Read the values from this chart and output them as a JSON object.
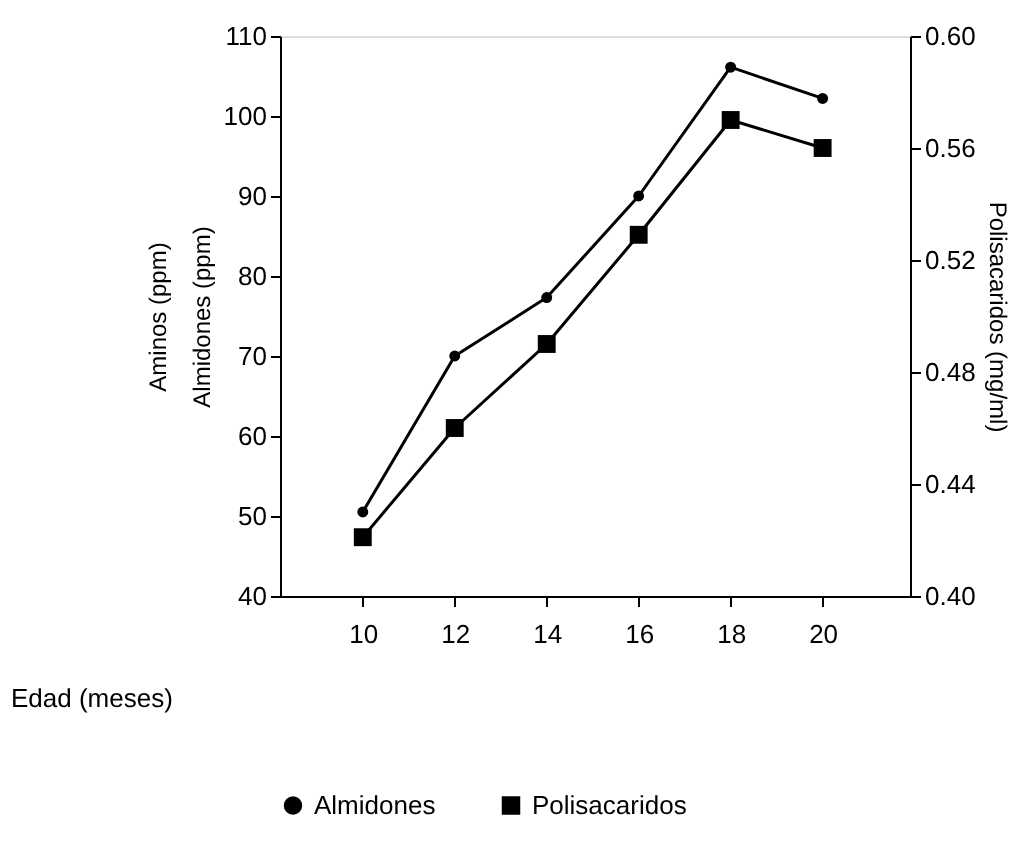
{
  "chart_data": {
    "type": "line",
    "xlabel": "Edad (meses)",
    "ylabel": "Aminos (ppm)\nAlmidones (ppm)",
    "y2label": "Polisacaridos (mg/ml)",
    "x": [
      10,
      12,
      14,
      16,
      18,
      20
    ],
    "xlim": [
      8.2,
      21.9
    ],
    "xticks": [
      10,
      12,
      14,
      16,
      18,
      20
    ],
    "ylim": [
      40,
      110
    ],
    "yticks": [
      40,
      50,
      60,
      70,
      80,
      90,
      100,
      110
    ],
    "y2lim": [
      0.4,
      0.6
    ],
    "y2ticks": [
      {
        "value": 0.4,
        "label": "0.40"
      },
      {
        "value": 0.44,
        "label": "0.44"
      },
      {
        "value": 0.48,
        "label": "0.48"
      },
      {
        "value": 0.52,
        "label": "0.52"
      },
      {
        "value": 0.56,
        "label": "0.56"
      },
      {
        "value": 0.6,
        "label": "0.60"
      }
    ],
    "series": [
      {
        "name": "Almidones",
        "color": "#000000",
        "marker": "circle",
        "values": [
          50.5,
          70,
          77.3,
          90,
          106.1,
          102.2
        ]
      },
      {
        "name": "Polisacaridos",
        "color": "#000000",
        "marker": "square",
        "axis": "y2",
        "values": [
          0.421,
          0.46,
          0.49,
          0.529,
          0.57,
          0.56
        ]
      }
    ],
    "grid": false,
    "legend": "bottom",
    "line_style": "solid"
  }
}
